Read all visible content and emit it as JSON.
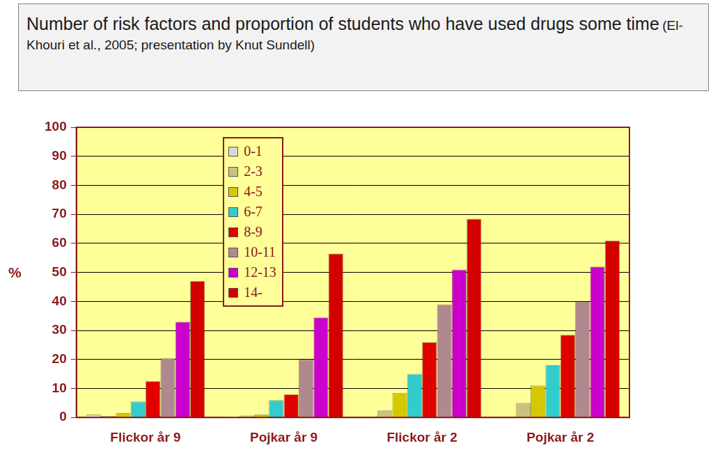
{
  "chart_data": {
    "type": "bar",
    "title": "Number of risk factors and proportion of students who have used drugs some time",
    "subtitle": "(El-Khouri et al., 2005; presentation by Knut Sundell)",
    "y_label": "%",
    "categories": [
      "Flickor år 9",
      "Pojkar år 9",
      "Flickor år 2",
      "Pojkar år 2"
    ],
    "series": [
      {
        "name": "0-1",
        "color": "#d9d9d9",
        "values": [
          1,
          0.3,
          0,
          0
        ]
      },
      {
        "name": "2-3",
        "color": "#c9c27e",
        "values": [
          0.5,
          0.7,
          2.5,
          5
        ]
      },
      {
        "name": "4-5",
        "color": "#d6c800",
        "values": [
          1.5,
          1,
          8.5,
          11
        ]
      },
      {
        "name": "6-7",
        "color": "#33cccc",
        "values": [
          5.5,
          6,
          15,
          18
        ]
      },
      {
        "name": "8-9",
        "color": "#e00000",
        "values": [
          12.5,
          8,
          26,
          28.5
        ]
      },
      {
        "name": "10-11",
        "color": "#b08890",
        "values": [
          20.5,
          20,
          39,
          40
        ]
      },
      {
        "name": "12-13",
        "color": "#cc00cc",
        "values": [
          33,
          34.5,
          51,
          52
        ]
      },
      {
        "name": "14-",
        "color": "#d40000",
        "values": [
          47,
          56.5,
          68.5,
          61
        ]
      }
    ],
    "ylim": [
      0,
      100
    ],
    "yticks": [
      0,
      10,
      20,
      30,
      40,
      50,
      60,
      70,
      80,
      90,
      100
    ],
    "grid": true,
    "legend": "upper left"
  }
}
